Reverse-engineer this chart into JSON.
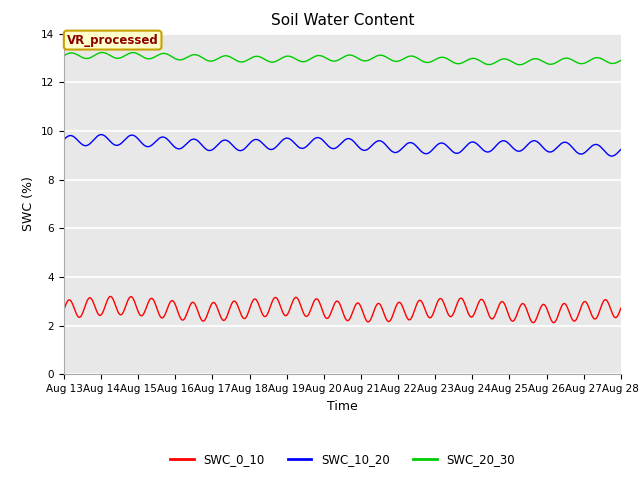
{
  "title": "Soil Water Content",
  "xlabel": "Time",
  "ylabel": "SWC (%)",
  "ylim": [
    0,
    14
  ],
  "yticks": [
    0,
    2,
    4,
    6,
    8,
    10,
    12,
    14
  ],
  "x_labels": [
    "Aug 13",
    "Aug 14",
    "Aug 15",
    "Aug 16",
    "Aug 17",
    "Aug 18",
    "Aug 19",
    "Aug 20",
    "Aug 21",
    "Aug 22",
    "Aug 23",
    "Aug 24",
    "Aug 25",
    "Aug 26",
    "Aug 27",
    "Aug 28"
  ],
  "series": {
    "SWC_0_10": {
      "color": "#ff0000",
      "base": 2.72,
      "amplitude": 0.38,
      "freq_per_day": 1.8,
      "trend": -0.008
    },
    "SWC_10_20": {
      "color": "#0000ff",
      "base": 9.58,
      "amplitude": 0.22,
      "freq_per_day": 1.2,
      "trend": -0.022
    },
    "SWC_20_30": {
      "color": "#00cc00",
      "base": 13.08,
      "amplitude": 0.12,
      "freq_per_day": 1.2,
      "trend": -0.016
    }
  },
  "annotation_text": "VR_processed",
  "annotation_color": "#8b0000",
  "annotation_bg": "#ffffcc",
  "annotation_border": "#c8a000",
  "bg_color": "#e8e8e8",
  "grid_color": "#ffffff",
  "title_fontsize": 11,
  "axis_fontsize": 9,
  "tick_fontsize": 7.5,
  "legend_fontsize": 8.5
}
